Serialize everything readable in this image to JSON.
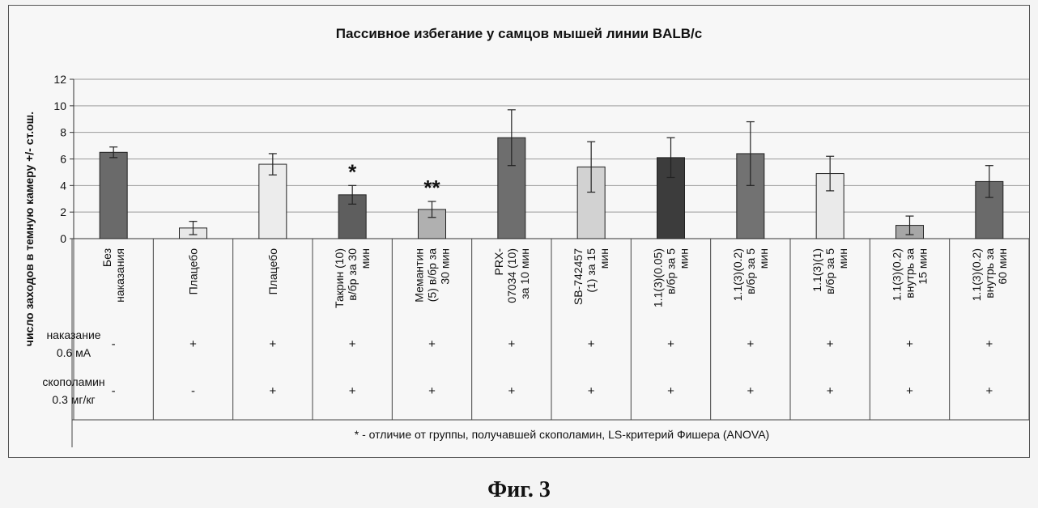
{
  "chart_data": {
    "type": "bar",
    "title": "Пассивное избегание у самцов мышей линии BALB/c",
    "ylabel": "число заходов в темную камеру +/- ст.ош.",
    "ylim": [
      0,
      12
    ],
    "yticks": [
      0,
      2,
      4,
      6,
      8,
      10,
      12
    ],
    "grid": true,
    "categories": [
      [
        "Без",
        "наказания"
      ],
      [
        "Плацебо"
      ],
      [
        "Плацебо"
      ],
      [
        "Такрин (10)",
        "в/бр за 30",
        "мин"
      ],
      [
        "Мемантин",
        "(5)  в/бр за",
        "30 мин"
      ],
      [
        "PRX-",
        "07034 (10)",
        "за 10 мин"
      ],
      [
        "SB-742457",
        "(1) за 15",
        "мин"
      ],
      [
        "1.1(3)(0.05)",
        "в/бр за 5",
        "мин"
      ],
      [
        "1.1(3)(0.2)",
        "в/бр за 5",
        "мин"
      ],
      [
        "1.1(3)(1)",
        "в/бр за 5",
        "мин"
      ],
      [
        "1.1(3)(0.2)",
        "внутрь за",
        "15 мин"
      ],
      [
        "1.1(3)(0.2)",
        "внутрь за",
        "60 мин"
      ]
    ],
    "values": [
      6.5,
      0.8,
      5.6,
      3.3,
      2.2,
      7.6,
      5.4,
      6.1,
      6.4,
      4.9,
      1.0,
      4.3
    ],
    "errors": [
      0.4,
      0.5,
      0.8,
      0.7,
      0.6,
      2.1,
      1.9,
      1.5,
      2.4,
      1.3,
      0.7,
      1.2
    ],
    "bar_colors": [
      "#6a6a6a",
      "#e8e8e8",
      "#ececec",
      "#5e5e5e",
      "#b0b0b0",
      "#6e6e6e",
      "#d2d2d2",
      "#3c3c3c",
      "#727272",
      "#eaeaea",
      "#a6a6a6",
      "#6a6a6a"
    ],
    "significance": [
      "",
      "",
      "",
      "*",
      "**",
      "",
      "",
      "",
      "",
      "",
      "",
      ""
    ],
    "table_rows": [
      {
        "label": [
          "наказание",
          "0.6 мА"
        ],
        "values": [
          "-",
          "+",
          "+",
          "+",
          "+",
          "+",
          "+",
          "+",
          "+",
          "+",
          "+",
          "+"
        ]
      },
      {
        "label": [
          "скополамин",
          "0.3 мг/кг"
        ],
        "values": [
          "-",
          "-",
          "+",
          "+",
          "+",
          "+",
          "+",
          "+",
          "+",
          "+",
          "+",
          "+"
        ]
      }
    ],
    "footnote": "* - отличие от группы, получавшей скополамин, LS-критерий Фишера (ANOVA)"
  },
  "caption": "Фиг. 3"
}
